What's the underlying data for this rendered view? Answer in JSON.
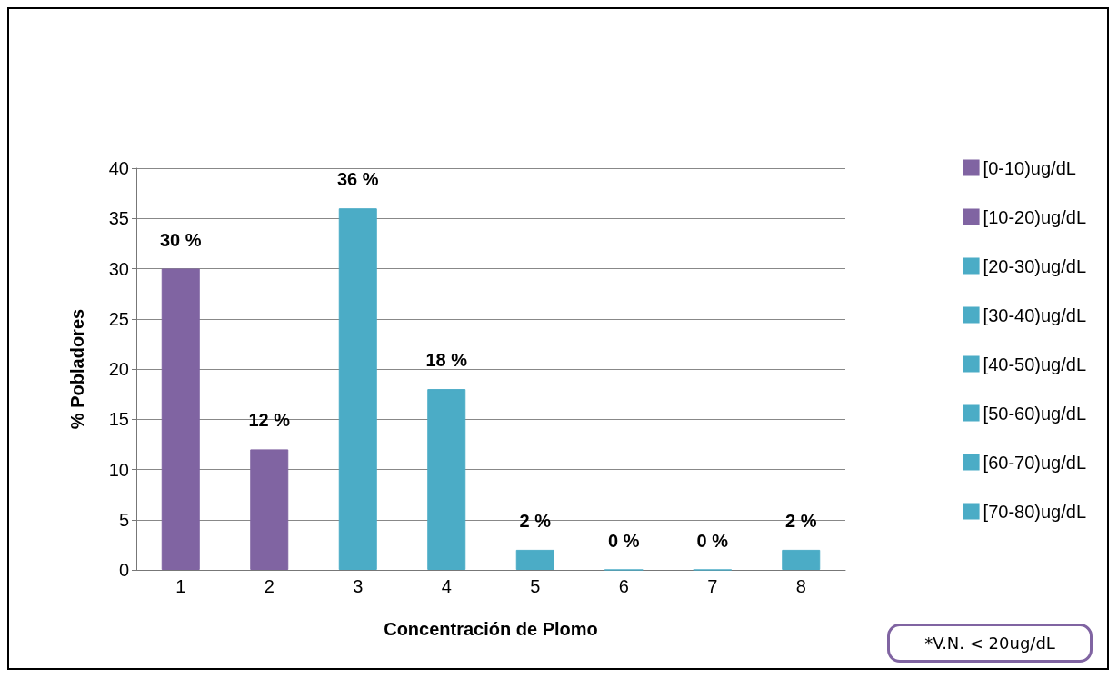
{
  "chart_data": {
    "type": "bar",
    "xlabel": "Concentración de Plomo",
    "ylabel": "% Pobladores",
    "categories": [
      "1",
      "2",
      "3",
      "4",
      "5",
      "6",
      "7",
      "8"
    ],
    "stacked": true,
    "ylim": [
      0,
      40
    ],
    "yticks": [
      0,
      5,
      10,
      15,
      20,
      25,
      30,
      35,
      40
    ],
    "grid": "y",
    "legend": "right",
    "annotations": [
      "*V.N. < 20ug/dL"
    ],
    "series": [
      {
        "name": "[0-10)ug/dL",
        "color": "#8064a2",
        "values": [
          30,
          null,
          null,
          null,
          null,
          null,
          null,
          null
        ],
        "value_labels": [
          "30 %",
          null,
          null,
          null,
          null,
          null,
          null,
          null
        ]
      },
      {
        "name": "[10-20)ug/dL",
        "color": "#8064a2",
        "values": [
          null,
          12,
          null,
          null,
          null,
          null,
          null,
          null
        ],
        "value_labels": [
          null,
          "12 %",
          null,
          null,
          null,
          null,
          null,
          null
        ]
      },
      {
        "name": "[20-30)ug/dL",
        "color": "#4bacc6",
        "values": [
          null,
          null,
          36,
          null,
          null,
          null,
          null,
          null
        ],
        "value_labels": [
          null,
          null,
          "36 %",
          null,
          null,
          null,
          null,
          null
        ]
      },
      {
        "name": "[30-40)ug/dL",
        "color": "#4bacc6",
        "values": [
          null,
          null,
          null,
          18,
          null,
          null,
          null,
          null
        ],
        "value_labels": [
          null,
          null,
          null,
          "18 %",
          null,
          null,
          null,
          null
        ]
      },
      {
        "name": "[40-50)ug/dL",
        "color": "#4bacc6",
        "values": [
          null,
          null,
          null,
          null,
          2,
          null,
          null,
          null
        ],
        "value_labels": [
          null,
          null,
          null,
          null,
          "2 %",
          null,
          null,
          null
        ]
      },
      {
        "name": "[50-60)ug/dL",
        "color": "#4bacc6",
        "values": [
          null,
          null,
          null,
          null,
          null,
          0,
          null,
          null
        ],
        "value_labels": [
          null,
          null,
          null,
          null,
          null,
          "0 %",
          null,
          null
        ]
      },
      {
        "name": "[60-70)ug/dL",
        "color": "#4bacc6",
        "values": [
          null,
          null,
          null,
          null,
          null,
          null,
          0,
          null
        ],
        "value_labels": [
          null,
          null,
          null,
          null,
          null,
          null,
          "0 %",
          null
        ]
      },
      {
        "name": "[70-80)ug/dL",
        "color": "#4bacc6",
        "values": [
          null,
          null,
          null,
          null,
          null,
          null,
          null,
          2
        ],
        "value_labels": [
          null,
          null,
          null,
          null,
          null,
          null,
          null,
          "2 %"
        ]
      }
    ]
  }
}
